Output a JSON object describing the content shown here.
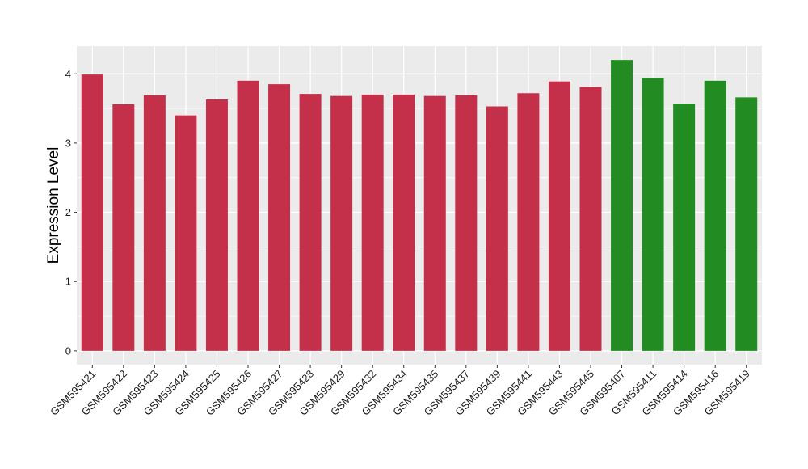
{
  "chart_data": {
    "type": "bar",
    "title": "",
    "xlabel": "",
    "ylabel": "Expression Level",
    "ylim": [
      -0.2,
      4.4
    ],
    "yticks": [
      0,
      1,
      2,
      3,
      4
    ],
    "grid": true,
    "legend": "none",
    "background": "#EBEBEB",
    "gridline_color": "#FFFFFF",
    "series_colors": {
      "group_a": "#C4304A",
      "group_b": "#228B22"
    },
    "categories": [
      "GSM595421",
      "GSM595422",
      "GSM595423",
      "GSM595424",
      "GSM595425",
      "GSM595426",
      "GSM595427",
      "GSM595428",
      "GSM595429",
      "GSM595432",
      "GSM595434",
      "GSM595435",
      "GSM595437",
      "GSM595439",
      "GSM595441",
      "GSM595443",
      "GSM595445",
      "GSM595407",
      "GSM595411",
      "GSM595414",
      "GSM595416",
      "GSM595419"
    ],
    "values": [
      3.99,
      3.56,
      3.69,
      3.4,
      3.63,
      3.9,
      3.85,
      3.71,
      3.68,
      3.7,
      3.7,
      3.68,
      3.69,
      3.53,
      3.72,
      3.89,
      3.81,
      4.2,
      3.94,
      3.57,
      3.9,
      3.66
    ],
    "groups": [
      "group_a",
      "group_a",
      "group_a",
      "group_a",
      "group_a",
      "group_a",
      "group_a",
      "group_a",
      "group_a",
      "group_a",
      "group_a",
      "group_a",
      "group_a",
      "group_a",
      "group_a",
      "group_a",
      "group_a",
      "group_b",
      "group_b",
      "group_b",
      "group_b",
      "group_b"
    ]
  }
}
